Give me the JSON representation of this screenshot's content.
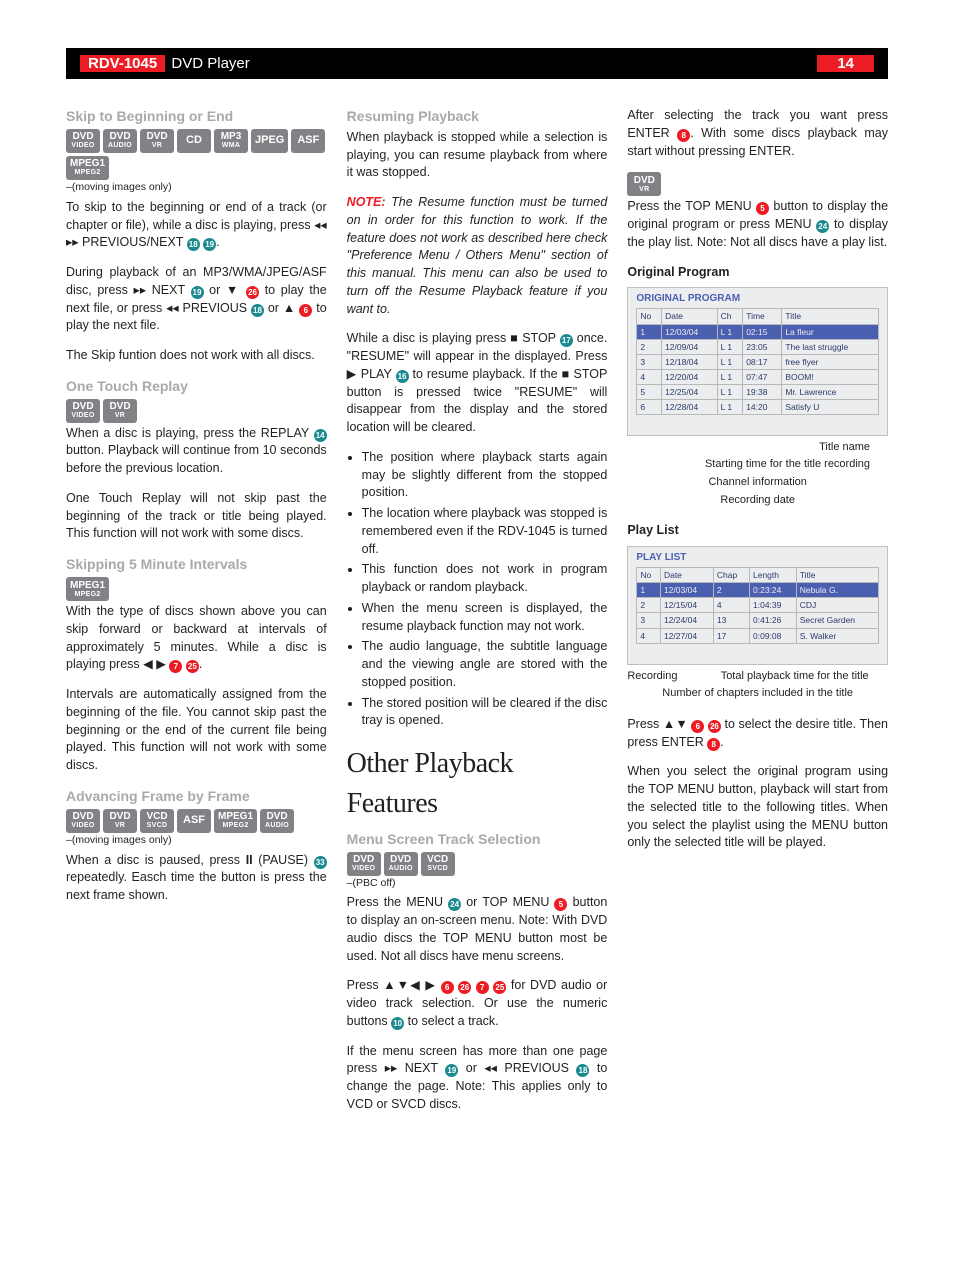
{
  "header": {
    "model": "RDV-1045",
    "product": "DVD Player",
    "page": "14"
  },
  "col1": {
    "s1": {
      "title": "Skip to Beginning or End",
      "badges": [
        "DVD|VIDEO",
        "DVD|AUDIO",
        "DVD|VR",
        "CD",
        "MP3|WMA",
        "JPEG",
        "ASF",
        "MPEG1|MPEG2"
      ],
      "suffix": "–(moving images only)",
      "p1a": "To skip to the beginning or end of a track (or chapter or file), while a disc is playing, press ",
      "p1b": " PREVIOUS/NEXT ",
      "p1c": ".",
      "p2a": "During playback of an MP3/WMA/JPEG/ASF disc, press ",
      "p2b": " NEXT ",
      "p2c": " or ",
      "p2d": " to play the next file, or press ",
      "p2e": " PREVIOUS ",
      "p2f": " or ",
      "p2g": " to play the next file.",
      "p3": "The Skip funtion does not work with all discs."
    },
    "s2": {
      "title": "One Touch Replay",
      "badges": [
        "DVD|VIDEO",
        "DVD|VR"
      ],
      "p1a": "When a disc is playing, press the REPLAY ",
      "p1b": " button. Playback will continue from 10 seconds before the previous location.",
      "p2": "One Touch Replay will not skip past the beginning of the track or title being played. This function will not work with some discs."
    },
    "s3": {
      "title": "Skipping 5 Minute Intervals",
      "badges": [
        "MPEG1|MPEG2"
      ],
      "p1a": "With the type of discs shown above you can skip forward or backward at intervals of approximately 5 minutes. While a disc is playing press ",
      "p1b": ".",
      "p2": "Intervals are automatically assigned from the beginning of the file. You cannot skip past the beginning or the end of the current file being played. This function will not work with some discs."
    },
    "s4": {
      "title": "Advancing Frame by Frame",
      "badges": [
        "DVD|VIDEO",
        "DVD|VR",
        "VCD|SVCD",
        "ASF",
        "MPEG1|MPEG2",
        "DVD|AUDIO"
      ],
      "suffix": "–(moving images only)",
      "p1a": "When a disc is paused, press ",
      "p1b": " (PAUSE) ",
      "p1c": " repeatedly. Easch time the button is press the next frame shown."
    }
  },
  "col2": {
    "s1": {
      "title": "Resuming Playback",
      "p1": "When playback is stopped while a selection is playing, you can resume playback from where it was stopped.",
      "note_lead": "NOTE:",
      "note": " The Resume function must be turned on in order for this function to work. If the feature does not work as described here check \"Preference Menu / Others Menu\" section of this manual. This menu can also be used to turn off the Resume Playback feature if you want to.",
      "p2a": "While a disc is playing press ",
      "p2b": " STOP ",
      "p2c": " once. \"RESUME\" will appear in the displayed. Press ",
      "p2d": " PLAY ",
      "p2e": " to resume playback. If the ",
      "p2f": " STOP button is pressed twice \"RESUME\" will disappear from the display and the stored location will be cleared.",
      "bullets": [
        "The position where playback starts again may be slightly different from the stopped position.",
        "The location where playback was stopped is remembered even if the RDV-1045 is turned off.",
        "This function does not work in program playback or random playback.",
        "When the menu screen is displayed, the resume playback function may not work.",
        "The audio language, the subtitle language and the viewing angle are stored with the stopped position.",
        "The stored position will be cleared if the disc tray is opened."
      ]
    },
    "feature_title": "Other Playback Features",
    "s2": {
      "title": "Menu Screen Track Selection",
      "badges": [
        "DVD|VIDEO",
        "DVD|AUDIO",
        "VCD|SVCD"
      ],
      "suffix": "–(PBC off)",
      "p1a": "Press the MENU ",
      "p1b": " or TOP MENU ",
      "p1c": " button to display an on-screen menu. Note: With DVD audio discs the TOP MENU button most be used. Not all discs have menu screens.",
      "p2a": "Press ",
      "p2b": " for DVD audio or video track selection. Or use the numeric buttons ",
      "p2c": " to select a track.",
      "p3a": "If the menu screen has more than one page press ",
      "p3b": " NEXT ",
      "p3c": " or ",
      "p3d": " PREVIOUS ",
      "p3e": " to change the page. Note: This applies only to VCD or SVCD discs."
    }
  },
  "col3": {
    "p1a": "After selecting the track you want press ENTER ",
    "p1b": ". With some discs playback may start without pressing ENTER.",
    "badges": [
      "DVD|VR"
    ],
    "p2a": "Press the TOP MENU ",
    "p2b": " button to display the original program or press MENU ",
    "p2c": " to display the play list. Note: Not all discs have a play list.",
    "sub1": "Original Program",
    "scr1": {
      "head": "ORIGINAL PROGRAM",
      "cols": [
        "No",
        "Date",
        "Ch",
        "Time",
        "Title"
      ],
      "rows": [
        [
          "1",
          "12/03/04",
          "L 1",
          "02:15",
          "La fleur"
        ],
        [
          "2",
          "12/09/04",
          "L 1",
          "23:05",
          "The last struggle"
        ],
        [
          "3",
          "12/18/04",
          "L 1",
          "08:17",
          "free flyer"
        ],
        [
          "4",
          "12/20/04",
          "L 1",
          "07:47",
          "BOOM!"
        ],
        [
          "5",
          "12/25/04",
          "L 1",
          "19:38",
          "Mr. Lawrence"
        ],
        [
          "6",
          "12/28/04",
          "L 1",
          "14:20",
          "Satisfy U"
        ]
      ],
      "a1": "Title name",
      "a2": "Starting time for the title recording",
      "a3": "Channel information",
      "a4": "Recording date"
    },
    "sub2": "Play List",
    "scr2": {
      "head": "PLAY LIST",
      "cols": [
        "No",
        "Date",
        "Chap",
        "Length",
        "Title"
      ],
      "rows": [
        [
          "1",
          "12/03/04",
          "2",
          "0:23:24",
          "Nebula G."
        ],
        [
          "2",
          "12/15/04",
          "4",
          "1:04:39",
          "CDJ"
        ],
        [
          "3",
          "12/24/04",
          "13",
          "0:41:26",
          "Secret Garden"
        ],
        [
          "4",
          "12/27/04",
          "17",
          "0:09:08",
          "S. Walker"
        ]
      ],
      "a1": "Recording",
      "a2": "Total playback time for the title",
      "a3": "Number of chapters included in the title"
    },
    "p3a": "Press ",
    "p3b": " to select the desire title. Then press ENTER ",
    "p3c": ".",
    "p4": "When you select the original program using the TOP MENU button, playback will start from the selected title to the following titles. When you select the playlist using the MENU button only the selected title will be played."
  },
  "circ": {
    "c5": "5",
    "c6": "6",
    "c7": "7",
    "c8": "8",
    "c10": "10",
    "c14": "14",
    "c16": "16",
    "c17": "17",
    "c18": "18",
    "c19": "19",
    "c24": "24",
    "c25": "25",
    "c26": "26",
    "c33": "33"
  },
  "sym": {
    "prev": "◂◂",
    "next": "▸▸",
    "left": "◀",
    "right": "▶",
    "up": "▲",
    "down": "▼",
    "stop": "■",
    "play": "▶",
    "pause": "II"
  }
}
